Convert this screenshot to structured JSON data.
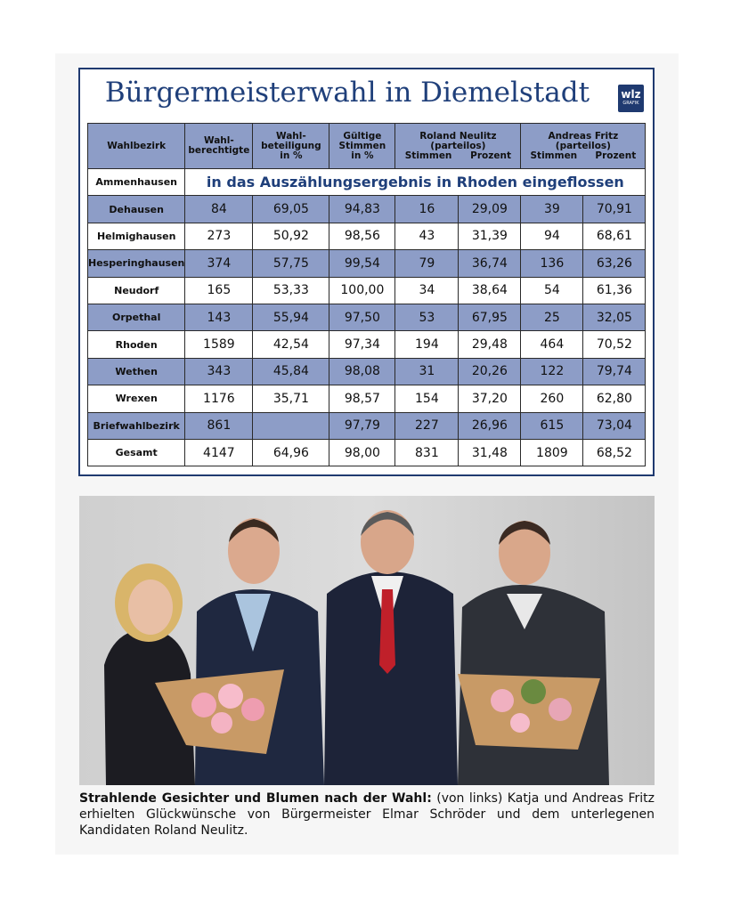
{
  "header": {
    "title": "Bürgermeisterwahl in Diemelstadt",
    "logo": "wlz",
    "logo_sub": "GRAFIK"
  },
  "table": {
    "columns": [
      "Wahlbezirk",
      "Wahl-\nberechtigte",
      "Wahl-\nbeteiligung\nin %",
      "Gültige\nStimmen\nin %"
    ],
    "candidates": [
      {
        "name": "Roland Neulitz",
        "party": "(parteilos)",
        "sub": [
          "Stimmen",
          "Prozent"
        ]
      },
      {
        "name": "Andreas Fritz",
        "party": "(parteilos)",
        "sub": [
          "Stimmen",
          "Prozent"
        ]
      }
    ],
    "note_row": {
      "district": "Ammenhausen",
      "note": "in das Auszählungsergebnis in Rhoden eingeflossen"
    },
    "rows": [
      [
        "Dehausen",
        "84",
        "69,05",
        "94,83",
        "16",
        "29,09",
        "39",
        "70,91"
      ],
      [
        "Helmighausen",
        "273",
        "50,92",
        "98,56",
        "43",
        "31,39",
        "94",
        "68,61"
      ],
      [
        "Hesperinghausen",
        "374",
        "57,75",
        "99,54",
        "79",
        "36,74",
        "136",
        "63,26"
      ],
      [
        "Neudorf",
        "165",
        "53,33",
        "100,00",
        "34",
        "38,64",
        "54",
        "61,36"
      ],
      [
        "Orpethal",
        "143",
        "55,94",
        "97,50",
        "53",
        "67,95",
        "25",
        "32,05"
      ],
      [
        "Rhoden",
        "1589",
        "42,54",
        "97,34",
        "194",
        "29,48",
        "464",
        "70,52"
      ],
      [
        "Wethen",
        "343",
        "45,84",
        "98,08",
        "31",
        "20,26",
        "122",
        "79,74"
      ],
      [
        "Wrexen",
        "1176",
        "35,71",
        "98,57",
        "154",
        "37,20",
        "260",
        "62,80"
      ],
      [
        "Briefwahlbezirk",
        "861",
        null,
        "97,79",
        "227",
        "26,96",
        "615",
        "73,04"
      ],
      [
        "Gesamt",
        "4147",
        "64,96",
        "98,00",
        "831",
        "31,48",
        "1809",
        "68,52"
      ]
    ]
  },
  "caption": {
    "lead": "Strahlende Gesichter und Blumen nach der Wahl:",
    "text": " (von links) Katja und Andreas Fritz erhielten Glückwünsche von Bürgermeister Elmar Schröder und dem unterlegenen Kandidaten Roland Neulitz."
  }
}
